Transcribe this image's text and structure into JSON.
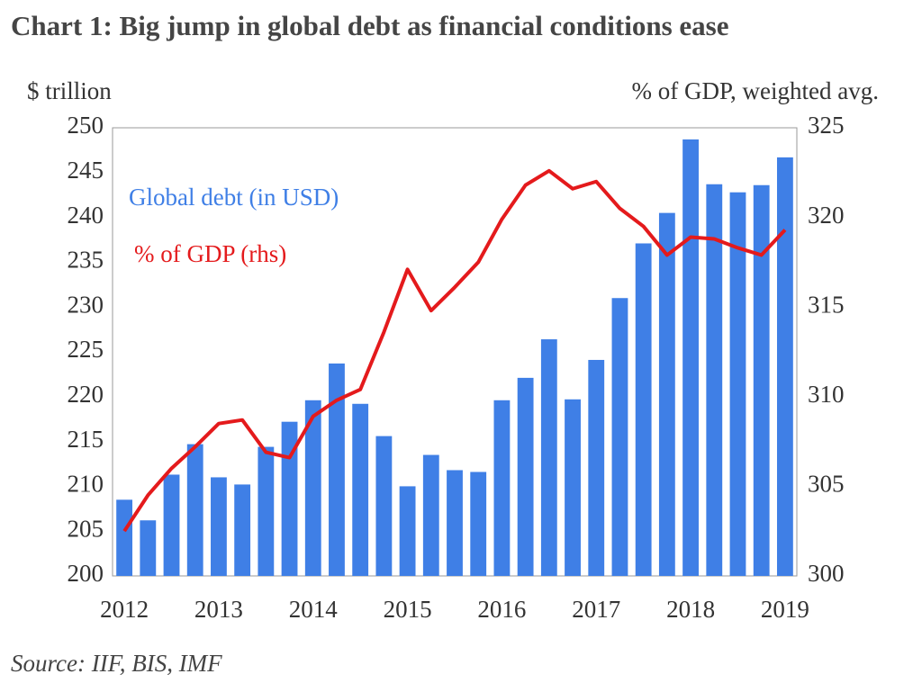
{
  "chart_data": {
    "type": "combo",
    "title": "Chart 1:  Big jump in global debt as financial conditions ease",
    "y_label": "$ trillion",
    "y2_label": "% of GDP, weighted avg.",
    "source": "Source: IIF, BIS, IMF",
    "categories": [
      "2012",
      null,
      null,
      null,
      "2013",
      null,
      null,
      null,
      "2014",
      null,
      null,
      null,
      "2015",
      null,
      null,
      null,
      "2016",
      null,
      null,
      null,
      "2017",
      null,
      null,
      null,
      "2018",
      null,
      null,
      null,
      "2019"
    ],
    "series": [
      {
        "name": "Global debt (in USD)",
        "type": "bar",
        "color": "#3f7fe6",
        "values": [
          208.5,
          206.2,
          211.3,
          214.7,
          211.0,
          210.2,
          214.4,
          217.2,
          219.6,
          223.7,
          219.2,
          215.6,
          210.0,
          213.5,
          211.8,
          211.6,
          219.6,
          222.1,
          226.4,
          219.7,
          224.1,
          231.0,
          237.1,
          240.5,
          248.7,
          243.7,
          242.8,
          243.6,
          246.7
        ]
      },
      {
        "name": "% of GDP (rhs)",
        "type": "line",
        "axis": "y2",
        "color": "#e41a1c",
        "values": [
          302.5,
          304.5,
          306.0,
          307.2,
          308.5,
          308.7,
          306.9,
          306.6,
          308.9,
          309.8,
          310.4,
          313.6,
          317.1,
          314.8,
          316.1,
          317.5,
          319.9,
          321.8,
          322.6,
          321.6,
          322.0,
          320.5,
          319.5,
          317.9,
          318.9,
          318.8,
          318.3,
          317.9,
          319.3
        ]
      }
    ],
    "ylim": [
      200,
      250
    ],
    "yticks": [
      200,
      205,
      210,
      215,
      220,
      225,
      230,
      235,
      240,
      245,
      250
    ],
    "y2lim": [
      300,
      325
    ],
    "y2ticks": [
      300,
      305,
      310,
      315,
      320,
      325
    ]
  }
}
